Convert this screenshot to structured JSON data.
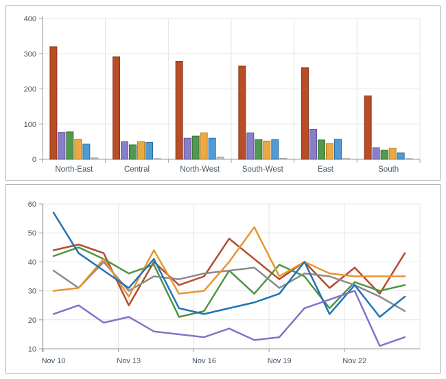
{
  "style": {
    "background": "#ffffff",
    "panel_border": "#ababab",
    "axis_color": "#9a9a9a",
    "grid_color": "#e4e4e4",
    "label_color": "#445666"
  },
  "chart_data": [
    {
      "type": "bar",
      "title": "",
      "xlabel": "",
      "ylabel": "",
      "categories": [
        "North-East",
        "Central",
        "North-West",
        "South-West",
        "East",
        "South"
      ],
      "series": [
        {
          "name": "rust",
          "fill": "#b84d26",
          "stroke": "#8a3a1c",
          "values": [
            320,
            291,
            278,
            265,
            260,
            180
          ]
        },
        {
          "name": "purple",
          "fill": "#8b7ec8",
          "stroke": "#62559f",
          "values": [
            77,
            50,
            60,
            75,
            85,
            33
          ]
        },
        {
          "name": "green",
          "fill": "#52984f",
          "stroke": "#366f36",
          "values": [
            78,
            41,
            66,
            56,
            55,
            26
          ]
        },
        {
          "name": "orange",
          "fill": "#eca842",
          "stroke": "#bc7e23",
          "values": [
            57,
            50,
            75,
            52,
            45,
            31
          ]
        },
        {
          "name": "blue",
          "fill": "#519bd5",
          "stroke": "#2c6e9e",
          "values": [
            43,
            48,
            60,
            56,
            57,
            18
          ]
        },
        {
          "name": "gray",
          "fill": "#c4c4c4",
          "stroke": "#9b9b9b",
          "values": [
            4,
            2,
            6,
            3,
            2,
            2
          ]
        }
      ],
      "ylim": [
        0,
        400
      ],
      "yticks": [
        0,
        100,
        200,
        300,
        400
      ],
      "grid": true,
      "legend": "none"
    },
    {
      "type": "line",
      "title": "",
      "xlabel": "",
      "ylabel": "",
      "x": [
        "Nov 10",
        "Nov 11",
        "Nov 12",
        "Nov 13",
        "Nov 14",
        "Nov 15",
        "Nov 16",
        "Nov 17",
        "Nov 18",
        "Nov 19",
        "Nov 20",
        "Nov 21",
        "Nov 22",
        "Nov 23",
        "Nov 24"
      ],
      "tick_indices": [
        0,
        3,
        6,
        9,
        12
      ],
      "tick_labels": [
        "Nov 10",
        "Nov 13",
        "Nov 16",
        "Nov 19",
        "Nov 22"
      ],
      "ylim": [
        10,
        60
      ],
      "yticks": [
        10,
        20,
        30,
        40,
        50,
        60
      ],
      "grid": true,
      "legend": "none",
      "series": [
        {
          "name": "red",
          "color": "#b54a2d",
          "values": [
            44,
            46,
            43,
            25,
            40,
            32,
            35,
            48,
            41,
            34,
            40,
            31,
            38,
            29,
            43
          ]
        },
        {
          "name": "green",
          "color": "#4f9445",
          "values": [
            42,
            45,
            41,
            36,
            39,
            21,
            23,
            37,
            29,
            39,
            35,
            24,
            33,
            30,
            32
          ]
        },
        {
          "name": "gray",
          "color": "#8a8a8a",
          "values": [
            37,
            31,
            40,
            30,
            35,
            34,
            36,
            37,
            38,
            31,
            36,
            35,
            32,
            28,
            23
          ]
        },
        {
          "name": "orange",
          "color": "#e6962f",
          "values": [
            30,
            31,
            41,
            28,
            44,
            29,
            30,
            40,
            52,
            35,
            40,
            36,
            35,
            35,
            35
          ]
        },
        {
          "name": "blue",
          "color": "#2273b4",
          "values": [
            57,
            43,
            37,
            31,
            41,
            24,
            22,
            24,
            26,
            29,
            40,
            22,
            32,
            21,
            28
          ]
        },
        {
          "name": "purple",
          "color": "#8571c9",
          "values": [
            22,
            25,
            19,
            21,
            16,
            15,
            14,
            17,
            13,
            14,
            24,
            27,
            30,
            11,
            14
          ]
        }
      ]
    }
  ]
}
